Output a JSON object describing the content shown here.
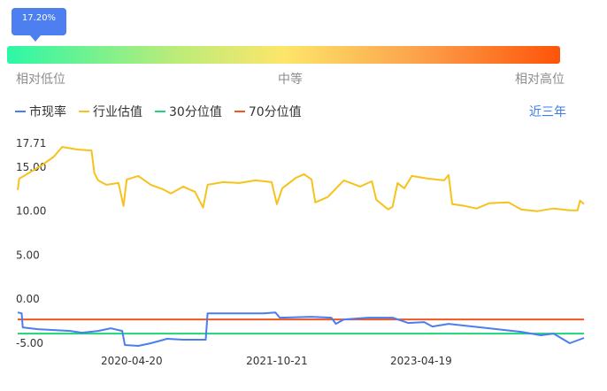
{
  "indicator": {
    "tooltip": "17.20%",
    "percentile": 0.172,
    "low_label": "相对低位",
    "mid_label": "中等",
    "high_label": "相对高位"
  },
  "legend": [
    {
      "name": "市现率",
      "color": "#4a7df0"
    },
    {
      "name": "行业估值",
      "color": "#f6c21c"
    },
    {
      "name": "30分位值",
      "color": "#21d27a"
    },
    {
      "name": "70分位值",
      "color": "#f0561e"
    }
  ],
  "period_button": "近三年",
  "chart_data": {
    "type": "line",
    "title": "",
    "xlabel": "",
    "ylabel": "",
    "x_range": [
      "2019-02-14",
      "2024-12-25"
    ],
    "x_ticks": [
      "2020-04-20",
      "2021-10-21",
      "2023-04-19"
    ],
    "y_ticks": [
      17.71,
      15.0,
      10.0,
      5.0,
      0.0,
      -5.0
    ],
    "y_tick_labels": [
      "17.71",
      "15.00",
      "10.00",
      "5.00",
      "0.00",
      "-5.00"
    ],
    "ylim": [
      -5.0,
      17.71
    ],
    "grid": false,
    "legend_position": "top-left",
    "series": [
      {
        "name": "市现率",
        "color": "#4a7df0",
        "points": [
          [
            "2019-02-14",
            -1.5
          ],
          [
            "2019-03-01",
            -1.6
          ],
          [
            "2019-03-05",
            -3.2
          ],
          [
            "2019-05-01",
            -3.4
          ],
          [
            "2019-09-01",
            -3.6
          ],
          [
            "2019-10-15",
            -3.8
          ],
          [
            "2019-12-15",
            -3.6
          ],
          [
            "2020-02-01",
            -3.3
          ],
          [
            "2020-03-15",
            -3.6
          ],
          [
            "2020-03-25",
            -5.2
          ],
          [
            "2020-05-15",
            -5.3
          ],
          [
            "2020-07-01",
            -5.0
          ],
          [
            "2020-09-01",
            -4.5
          ],
          [
            "2020-11-01",
            -4.6
          ],
          [
            "2021-01-15",
            -4.6
          ],
          [
            "2021-01-25",
            -4.6
          ],
          [
            "2021-02-01",
            -1.6
          ],
          [
            "2021-04-01",
            -1.6
          ],
          [
            "2021-07-01",
            -1.6
          ],
          [
            "2021-09-01",
            -1.6
          ],
          [
            "2021-10-15",
            -1.5
          ],
          [
            "2021-11-01",
            -2.1
          ],
          [
            "2022-03-01",
            -2.0
          ],
          [
            "2022-05-15",
            -2.1
          ],
          [
            "2022-06-01",
            -2.8
          ],
          [
            "2022-07-01",
            -2.3
          ],
          [
            "2022-10-01",
            -2.1
          ],
          [
            "2023-01-01",
            -2.1
          ],
          [
            "2023-03-01",
            -2.7
          ],
          [
            "2023-05-01",
            -2.6
          ],
          [
            "2023-06-01",
            -3.1
          ],
          [
            "2023-08-01",
            -2.8
          ],
          [
            "2024-01-01",
            -3.3
          ],
          [
            "2024-05-01",
            -3.7
          ],
          [
            "2024-07-15",
            -4.1
          ],
          [
            "2024-09-01",
            -3.9
          ],
          [
            "2024-11-01",
            -5.0
          ],
          [
            "2024-12-25",
            -4.4
          ]
        ]
      },
      {
        "name": "行业估值",
        "color": "#f6c21c",
        "points": [
          [
            "2019-02-14",
            12.4
          ],
          [
            "2019-02-20",
            13.7
          ],
          [
            "2019-04-01",
            14.4
          ],
          [
            "2019-05-15",
            15.2
          ],
          [
            "2019-07-01",
            16.2
          ],
          [
            "2019-08-01",
            17.3
          ],
          [
            "2019-10-01",
            17.0
          ],
          [
            "2019-11-20",
            16.9
          ],
          [
            "2019-12-01",
            14.3
          ],
          [
            "2019-12-15",
            13.5
          ],
          [
            "2020-01-15",
            13.0
          ],
          [
            "2020-03-01",
            13.2
          ],
          [
            "2020-03-20",
            10.6
          ],
          [
            "2020-04-01",
            13.6
          ],
          [
            "2020-05-15",
            14.0
          ],
          [
            "2020-07-01",
            13.0
          ],
          [
            "2020-08-15",
            12.5
          ],
          [
            "2020-09-15",
            12.0
          ],
          [
            "2020-11-01",
            12.8
          ],
          [
            "2020-12-15",
            12.2
          ],
          [
            "2021-01-15",
            10.4
          ],
          [
            "2021-02-01",
            13.0
          ],
          [
            "2021-04-01",
            13.3
          ],
          [
            "2021-06-01",
            13.2
          ],
          [
            "2021-08-01",
            13.5
          ],
          [
            "2021-10-01",
            13.3
          ],
          [
            "2021-10-21",
            10.8
          ],
          [
            "2021-11-10",
            12.6
          ],
          [
            "2022-01-01",
            13.8
          ],
          [
            "2022-02-01",
            14.2
          ],
          [
            "2022-03-01",
            13.6
          ],
          [
            "2022-03-15",
            11.0
          ],
          [
            "2022-05-01",
            11.6
          ],
          [
            "2022-07-01",
            13.5
          ],
          [
            "2022-09-01",
            12.8
          ],
          [
            "2022-10-15",
            13.4
          ],
          [
            "2022-11-01",
            11.3
          ],
          [
            "2022-12-15",
            10.2
          ],
          [
            "2023-01-01",
            10.5
          ],
          [
            "2023-01-20",
            13.2
          ],
          [
            "2023-02-15",
            12.6
          ],
          [
            "2023-03-15",
            14.0
          ],
          [
            "2023-05-15",
            13.7
          ],
          [
            "2023-07-15",
            13.5
          ],
          [
            "2023-08-01",
            14.1
          ],
          [
            "2023-08-15",
            10.8
          ],
          [
            "2023-10-01",
            10.6
          ],
          [
            "2023-11-15",
            10.3
          ],
          [
            "2024-01-01",
            10.9
          ],
          [
            "2024-03-15",
            11.0
          ],
          [
            "2024-05-01",
            10.2
          ],
          [
            "2024-07-01",
            10.0
          ],
          [
            "2024-09-01",
            10.3
          ],
          [
            "2024-11-01",
            10.1
          ],
          [
            "2024-12-01",
            10.1
          ],
          [
            "2024-12-10",
            11.2
          ],
          [
            "2024-12-25",
            10.8
          ]
        ]
      },
      {
        "name": "30分位值",
        "color": "#21d27a",
        "points": [
          [
            "2019-02-14",
            -3.9
          ],
          [
            "2024-12-25",
            -3.9
          ]
        ]
      },
      {
        "name": "70分位值",
        "color": "#f0561e",
        "points": [
          [
            "2019-02-14",
            -2.3
          ],
          [
            "2024-12-25",
            -2.3
          ]
        ]
      }
    ]
  }
}
